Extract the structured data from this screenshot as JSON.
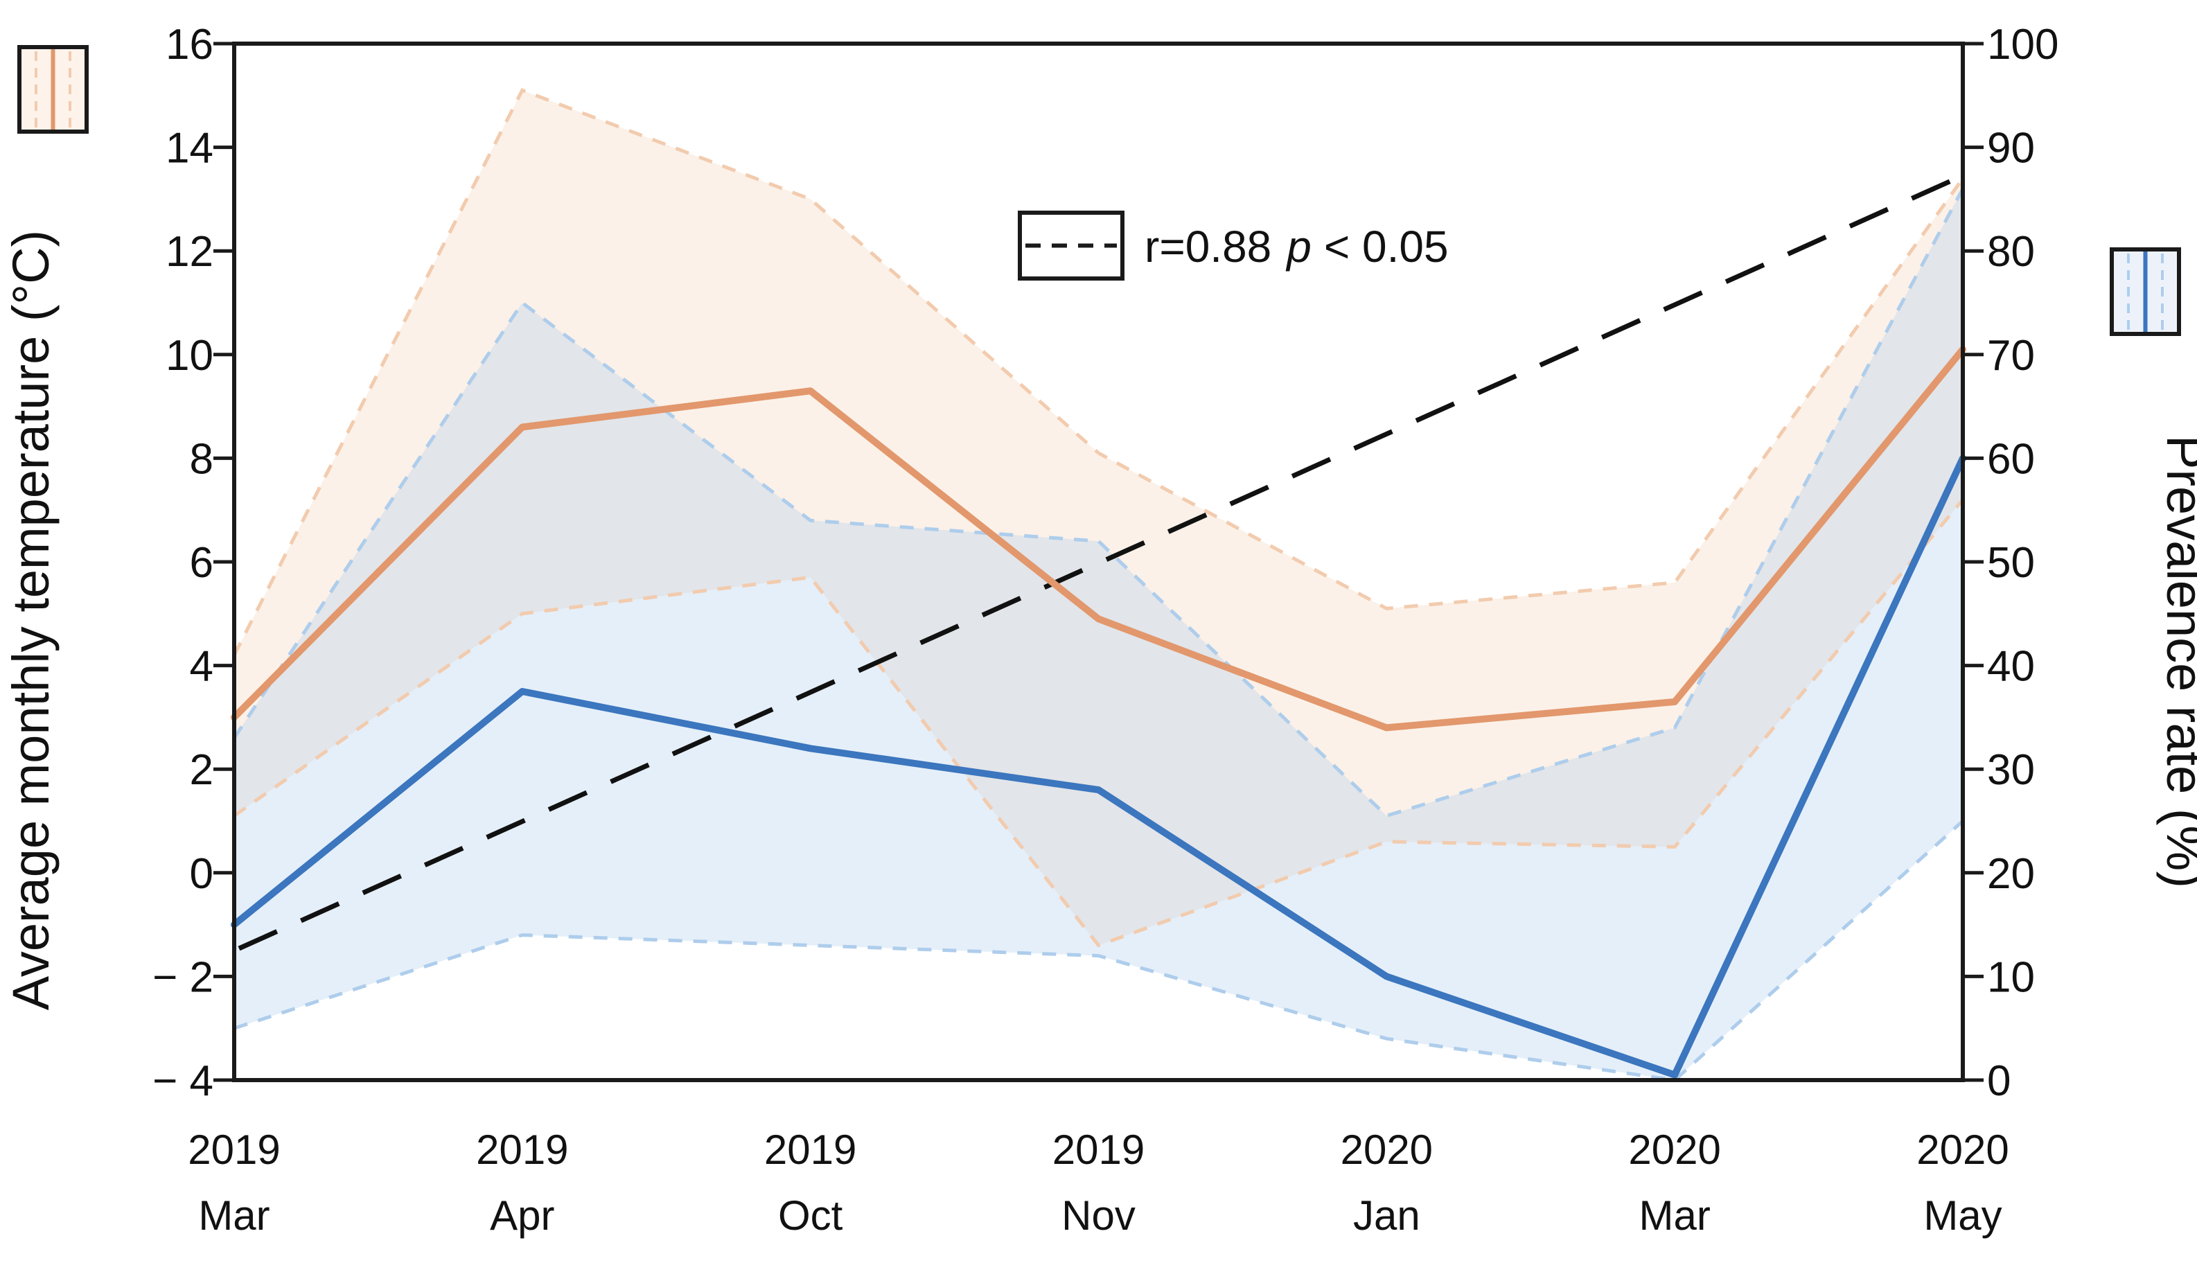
{
  "chart_data": {
    "type": "line",
    "title": "",
    "x_axis_labels": [
      "2019 Mar",
      "2019 Apr",
      "2019 Oct",
      "2019 Nov",
      "2020 Jan",
      "2020 Mar",
      "2020 May"
    ],
    "x_axis_labels_two_line": [
      [
        "2019",
        "Mar"
      ],
      [
        "2019",
        "Apr"
      ],
      [
        "2019",
        "Oct"
      ],
      [
        "2019",
        "Nov"
      ],
      [
        "2020",
        "Jan"
      ],
      [
        "2020",
        "Mar"
      ],
      [
        "2020",
        "May"
      ]
    ],
    "ylabel_left": "Average monthly temperature (°C)",
    "ylabel_right": "Prevalence rate (%)",
    "ylim_left": [
      -4,
      16
    ],
    "ylim_right": [
      0,
      100
    ],
    "yticks_left": [
      16,
      14,
      12,
      10,
      8,
      6,
      4,
      2,
      0,
      -2,
      -4
    ],
    "ytick_labels_left": [
      "16",
      "14",
      "12",
      "10",
      "8",
      "6",
      "4",
      "2",
      "0",
      "− 2",
      "− 4"
    ],
    "yticks_right": [
      100,
      90,
      80,
      70,
      60,
      50,
      40,
      30,
      20,
      10,
      0
    ],
    "ytick_labels_right": [
      "100",
      "90",
      "80",
      "70",
      "60",
      "50",
      "40",
      "30",
      "20",
      "10",
      "0"
    ],
    "grid": false,
    "legend_position": "top-center",
    "series": [
      {
        "name": "temperature_mean",
        "axis": "left",
        "style": "solid",
        "color": "#E2976C",
        "width": 10,
        "values": [
          3.0,
          8.6,
          9.3,
          4.9,
          2.8,
          3.3,
          10.1
        ]
      },
      {
        "name": "temperature_band_upper",
        "axis": "left",
        "style": "dashed",
        "color": "#F2CBAE",
        "width": 5,
        "values": [
          4.2,
          15.1,
          13.0,
          8.1,
          5.1,
          5.6,
          13.4
        ]
      },
      {
        "name": "temperature_band_lower",
        "axis": "left",
        "style": "dashed",
        "color": "#F2CBAE",
        "width": 5,
        "values": [
          1.1,
          5.0,
          5.7,
          -1.4,
          0.6,
          0.5,
          7.2
        ]
      },
      {
        "name": "prevalence_mean",
        "axis": "right",
        "style": "solid",
        "color": "#3B76BE",
        "width": 10,
        "values": [
          15,
          37.5,
          32,
          28,
          10,
          0.5,
          60
        ]
      },
      {
        "name": "prevalence_band_upper",
        "axis": "right",
        "style": "dashed",
        "color": "#AECDEC",
        "width": 5,
        "values": [
          33,
          75,
          54,
          52,
          25.5,
          34,
          86
        ]
      },
      {
        "name": "prevalence_band_lower",
        "axis": "right",
        "style": "dashed",
        "color": "#AECDEC",
        "width": 5,
        "values": [
          5,
          14,
          13,
          12,
          4,
          0,
          25
        ]
      }
    ],
    "bands": [
      {
        "name": "temperature_band",
        "upper": "temperature_band_upper",
        "lower": "temperature_band_lower",
        "fill": "rgba(242,203,174,0.28)"
      },
      {
        "name": "prevalence_band",
        "upper": "prevalence_band_upper",
        "lower": "prevalence_band_lower",
        "fill": "rgba(174,205,236,0.32)"
      }
    ],
    "trend_line": {
      "name": "correlation_trend",
      "axis": "right",
      "style": "long-dash",
      "color": "#111111",
      "width": 7,
      "start_percent": 12.7,
      "end_percent": 87.0
    },
    "legend": {
      "r_text": "r=0.88",
      "p_italic": "p",
      "p_rest": "< 0.05"
    },
    "swatches": {
      "temperature": {
        "fill": "#FDF3EB",
        "line": "#E2976C",
        "dash": "#F2CBAE"
      },
      "prevalence": {
        "fill": "#EDF2FA",
        "line": "#3B76BE",
        "dash": "#AECDEC"
      }
    },
    "axis_color": "#1a1a1a"
  }
}
